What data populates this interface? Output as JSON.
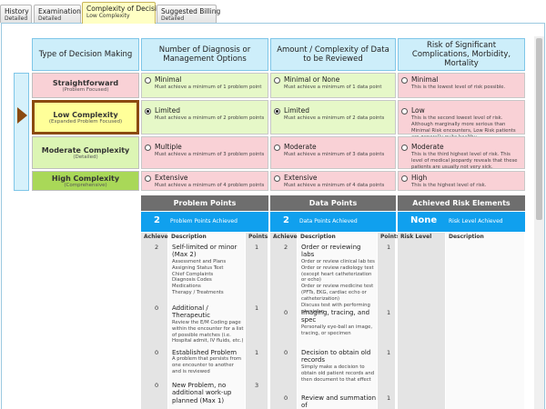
{
  "tabs": [
    {
      "title": "History",
      "subtitle": "Detailed"
    },
    {
      "title": "Examination",
      "subtitle": "Detailed"
    },
    {
      "title": "Complexity of Decision",
      "subtitle": "Low Complexity",
      "active": true
    },
    {
      "title": "Suggested Billing",
      "subtitle": "Detailed"
    }
  ],
  "grid": {
    "type_header": "Type of Decision Making",
    "columns": [
      "Number of Diagnosis or Management Options",
      "Amount / Complexity of Data to be Reviewed",
      "Risk of Significant Complications, Morbidity, Mortality"
    ],
    "rows": [
      {
        "type": "Straightforward",
        "subtype": "(Problem Focused)",
        "cells": [
          {
            "label": "Minimal",
            "note": "Must achieve a minimum of 1 problem point",
            "met": true
          },
          {
            "label": "Minimal or None",
            "note": "Must achieve a minimum of 1 data point",
            "met": true
          },
          {
            "label": "Minimal",
            "note": "This is the lowest level of risk possible."
          }
        ]
      },
      {
        "type": "Low Complexity",
        "subtype": "(Expanded Problem Focused)",
        "selected": true,
        "cells": [
          {
            "label": "Limited",
            "note": "Must achieve a minimum of 2 problem points",
            "met": true,
            "checked": true
          },
          {
            "label": "Limited",
            "note": "Must achieve a minimum of 2 data points",
            "met": true,
            "checked": true
          },
          {
            "label": "Low",
            "note": "This is the second lowest level of risk. Although marginally more serious than Minimal Risk encounters, Low Risk patients are generally quite healthy."
          }
        ]
      },
      {
        "type": "Moderate Complexity",
        "subtype": "(Detailed)",
        "cells": [
          {
            "label": "Multiple",
            "note": "Must achieve a minimum of 3 problem points"
          },
          {
            "label": "Moderate",
            "note": "Must achieve a minimum of 3 data points"
          },
          {
            "label": "Moderate",
            "note": "This is the third highest level of risk. This level of medical jeopardy reveals that these patients are usually not very sick."
          }
        ]
      },
      {
        "type": "High Complexity",
        "subtype": "(Comprehensive)",
        "cells": [
          {
            "label": "Extensive",
            "note": "Must achieve a minimum of 4 problem points"
          },
          {
            "label": "Extensive",
            "note": "Must achieve a minimum of 4 data points"
          },
          {
            "label": "High",
            "note": "This is the highest level of risk."
          }
        ]
      }
    ]
  },
  "panels": [
    {
      "title": "Problem Points",
      "count": 2,
      "count_label": "Problem Points Achieved",
      "headers": [
        "Achieved",
        "Description",
        "Points"
      ],
      "items": [
        {
          "achieved": 2,
          "title": "Self-limited or minor (Max 2)",
          "details": [
            "Assessment and Plans",
            "Assigning Status Text",
            "Chief Complaints",
            "Diagnosis Codes",
            "Medications",
            "Therapy / Treatments"
          ],
          "points": 1
        },
        {
          "achieved": 0,
          "title": "Additional / Therapeutic",
          "details": [
            "Review the E/M Coding page within the encounter for a list of possible matches (i.e. Hospital admit, IV fluids, etc.)"
          ],
          "points": 1
        },
        {
          "achieved": 0,
          "title": "Established Problem",
          "details": [
            "A problem that persists from one encounter to another and is reviewed"
          ],
          "points": 1
        },
        {
          "achieved": 0,
          "title": "New Problem, no additional work-up planned (Max 1)",
          "details": [],
          "points": 3
        }
      ]
    },
    {
      "title": "Data Points",
      "count": 2,
      "count_label": "Data Points Achieved",
      "headers": [
        "Achieved",
        "Description",
        "Points"
      ],
      "items": [
        {
          "achieved": 2,
          "title": "Order or reviewing labs",
          "details": [
            "Order or review clinical lab tes",
            "Order or review radiology test (except heart catheterization or echo)",
            "Order or review medicine test (PFTs, EKG, cardiac echo or catheterization)",
            "Discuss test with performing physician"
          ],
          "points": 1
        },
        {
          "achieved": 0,
          "title": "Imaging, tracing, and spec",
          "details": [
            "Personally eye-ball an image, tracing, or specimen"
          ],
          "points": 1
        },
        {
          "achieved": 0,
          "title": "Decision to obtain old records",
          "details": [
            "Simply make a decision to obtain old patient records and then document to that effect"
          ],
          "points": 1
        },
        {
          "achieved": 0,
          "title": "Review and summation of",
          "details": [],
          "points": 1
        }
      ]
    },
    {
      "title": "Achieved Risk Elements",
      "count": "None",
      "count_label": "Risk Level Achieved",
      "headers": [
        "Risk Level",
        "Description"
      ],
      "items": []
    }
  ]
}
